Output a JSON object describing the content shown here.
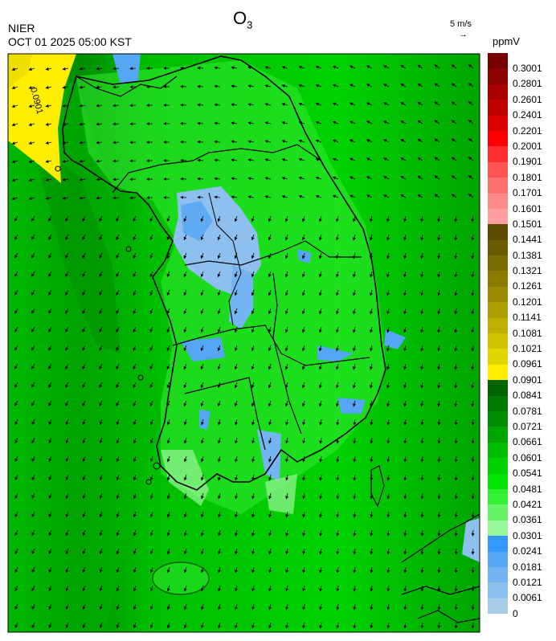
{
  "header": {
    "agency": "NIER",
    "timestamp": "OCT 01 2025 05:00 KST",
    "title": "O",
    "title_subscript": "3",
    "wind_reference": "5 m/s",
    "wind_arrow": "→",
    "unit": "ppmV"
  },
  "map": {
    "contour_label": "0.0901",
    "land_color": "#000000",
    "arrow_color": "#000000"
  },
  "legend": {
    "bins": [
      {
        "color": "#7a0000",
        "label": "0.3001"
      },
      {
        "color": "#8f0000",
        "label": "0.2801"
      },
      {
        "color": "#a80000",
        "label": "0.2601"
      },
      {
        "color": "#c00000",
        "label": "0.2401"
      },
      {
        "color": "#dc0000",
        "label": "0.2201"
      },
      {
        "color": "#ff0000",
        "label": "0.2001"
      },
      {
        "color": "#ff2e2e",
        "label": "0.1901"
      },
      {
        "color": "#ff5555",
        "label": "0.1801"
      },
      {
        "color": "#ff7070",
        "label": "0.1701"
      },
      {
        "color": "#ff8a8a",
        "label": "0.1601"
      },
      {
        "color": "#ff9e9e",
        "label": "0.1501"
      },
      {
        "color": "#5c4a00",
        "label": "0.1441"
      },
      {
        "color": "#6b5a00",
        "label": "0.1381"
      },
      {
        "color": "#7a6b00",
        "label": "0.1321"
      },
      {
        "color": "#8a7a00",
        "label": "0.1261"
      },
      {
        "color": "#9c8c00",
        "label": "0.1201"
      },
      {
        "color": "#ad9f00",
        "label": "0.1141"
      },
      {
        "color": "#bfb000",
        "label": "0.1081"
      },
      {
        "color": "#d1c200",
        "label": "0.1021"
      },
      {
        "color": "#e2d600",
        "label": "0.0961"
      },
      {
        "color": "#ffee00",
        "label": "0.0901"
      },
      {
        "color": "#006400",
        "label": "0.0841"
      },
      {
        "color": "#007800",
        "label": "0.0781"
      },
      {
        "color": "#008c00",
        "label": "0.0721"
      },
      {
        "color": "#00a500",
        "label": "0.0661"
      },
      {
        "color": "#00be00",
        "label": "0.0601"
      },
      {
        "color": "#00d200",
        "label": "0.0541"
      },
      {
        "color": "#00e600",
        "label": "0.0481"
      },
      {
        "color": "#33f233",
        "label": "0.0421"
      },
      {
        "color": "#66f566",
        "label": "0.0361"
      },
      {
        "color": "#99f799",
        "label": "0.0301"
      },
      {
        "color": "#3399ff",
        "label": "0.0241"
      },
      {
        "color": "#55a6f5",
        "label": "0.0181"
      },
      {
        "color": "#74b4f2",
        "label": "0.0121"
      },
      {
        "color": "#8dc0ee",
        "label": "0.0061"
      },
      {
        "color": "#a6cce8",
        "label": "0"
      }
    ]
  }
}
